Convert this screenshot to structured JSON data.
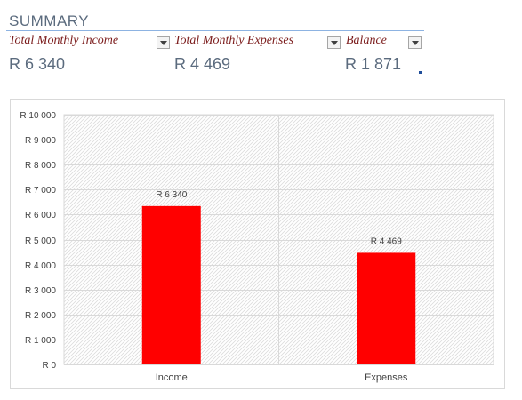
{
  "summary": {
    "title": "SUMMARY",
    "columns": [
      {
        "header": "Total Monthly Income",
        "value": "R 6 340"
      },
      {
        "header": "Total Monthly Expenses",
        "value": "R 4 469"
      },
      {
        "header": "Balance",
        "value": "R 1 871"
      }
    ]
  },
  "chart_data": {
    "type": "bar",
    "categories": [
      "Income",
      "Expenses"
    ],
    "values": [
      6340,
      4469
    ],
    "data_labels": [
      "R 6 340",
      "R 4 469"
    ],
    "y_ticks": [
      "R 0",
      "R 1 000",
      "R 2 000",
      "R 3 000",
      "R 4 000",
      "R 5 000",
      "R 6 000",
      "R 7 000",
      "R 8 000",
      "R 9 000",
      "R 10 000"
    ],
    "ylim": [
      0,
      10000
    ],
    "title": "",
    "xlabel": "",
    "ylabel": "",
    "grid": true,
    "bar_color": "#ff0000",
    "plot_background": "hatched light gray"
  }
}
